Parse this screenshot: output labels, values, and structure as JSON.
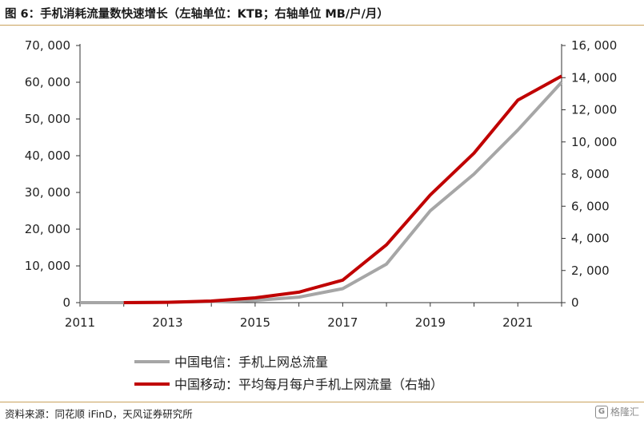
{
  "figure": {
    "title": "图 6：手机消耗流量数快速增长（左轴单位：KTB；右轴单位 MB/户/月）",
    "source": "资料来源：同花顺 iFinD，天风证券研究所",
    "watermark_text": "格隆汇",
    "watermark_logo": "G"
  },
  "chart_data": {
    "type": "line",
    "title": "",
    "xlabel": "",
    "ylabel": "",
    "x": [
      2011,
      2012,
      2013,
      2014,
      2015,
      2016,
      2017,
      2018,
      2019,
      2020,
      2021,
      2022
    ],
    "xticks": [
      2011,
      2013,
      2015,
      2017,
      2019,
      2021
    ],
    "ylim_left": [
      0,
      70000
    ],
    "yticks_left": [
      0,
      10000,
      20000,
      30000,
      40000,
      50000,
      60000,
      70000
    ],
    "ylim_right": [
      0,
      16000
    ],
    "yticks_right": [
      0,
      2000,
      4000,
      6000,
      8000,
      10000,
      12000,
      14000,
      16000
    ],
    "grid": false,
    "legend_position": "bottom-center",
    "series": [
      {
        "name": "中国电信：手机上网总流量",
        "axis": "left",
        "color": "#a6a6a6",
        "values": [
          0,
          0,
          100,
          300,
          600,
          1500,
          3800,
          10500,
          25000,
          35000,
          47000,
          60000
        ]
      },
      {
        "name": "中国移动：平均每月每户手机上网流量（右轴）",
        "axis": "right",
        "color": "#c00000",
        "values": [
          null,
          0,
          20,
          100,
          300,
          650,
          1400,
          3600,
          6700,
          9300,
          12600,
          14100
        ]
      }
    ]
  }
}
